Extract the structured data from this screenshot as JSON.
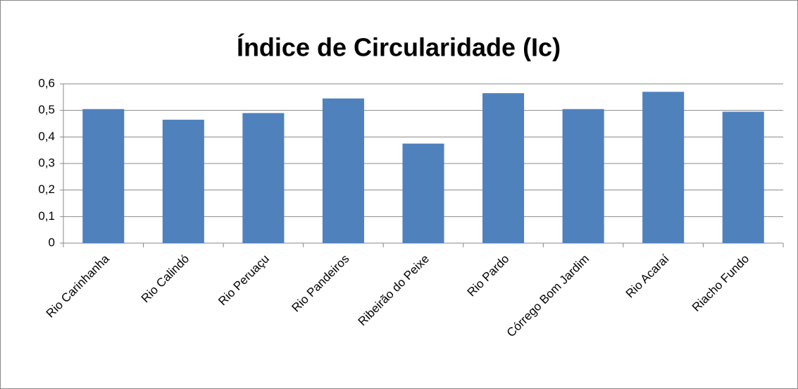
{
  "chart_data": {
    "type": "bar",
    "title": "Índice de Circularidade (Ic)",
    "categories": [
      "Rio Carinhanha",
      "Rio Calindó",
      "Rio Peruaçu",
      "Rio Pandeiros",
      "Ribeirão do Peixe",
      "Rio Pardo",
      "Córrego Bom Jardim",
      "Rio Acaraí",
      "Riacho Fundo"
    ],
    "values": [
      0.505,
      0.465,
      0.49,
      0.545,
      0.375,
      0.565,
      0.505,
      0.57,
      0.495
    ],
    "color": "#4f81bd",
    "ylim": [
      0,
      0.6
    ],
    "yticks": [
      0,
      {
        "value": 0.1,
        "label": "0,1"
      },
      {
        "value": 0.2,
        "label": "0,2"
      },
      {
        "value": 0.3,
        "label": "0,3"
      },
      {
        "value": 0.4,
        "label": "0,4"
      },
      {
        "value": 0.5,
        "label": "0,5"
      },
      {
        "value": 0.6,
        "label": "0,6"
      }
    ],
    "grid": true
  }
}
